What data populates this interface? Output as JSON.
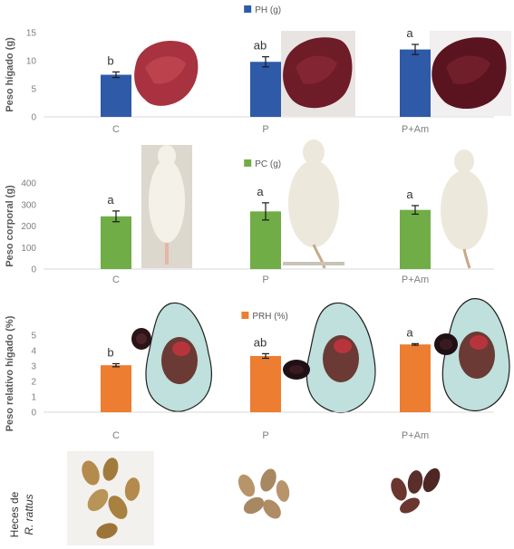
{
  "chart_data": [
    {
      "type": "bar",
      "legend": "PH (g)",
      "ylabel": "Peso hígado (g)",
      "categories": [
        "C",
        "P",
        "P+Am"
      ],
      "values": [
        7.5,
        9.8,
        12.0
      ],
      "errors": [
        0.5,
        0.9,
        0.9
      ],
      "letters": [
        "b",
        "ab",
        "a"
      ],
      "color": "#2e5aa8",
      "yticks": [
        0,
        5,
        10,
        15
      ],
      "ylim": [
        0,
        15
      ],
      "grid": false,
      "legend_position": "top"
    },
    {
      "type": "bar",
      "legend": "PC (g)",
      "ylabel": "Peso corporal (g)",
      "categories": [
        "C",
        "P",
        "P+Am"
      ],
      "values": [
        245,
        268,
        275
      ],
      "errors": [
        25,
        40,
        20
      ],
      "letters": [
        "a",
        "a",
        "a"
      ],
      "color": "#70ad47",
      "yticks": [
        0,
        100,
        200,
        300,
        400
      ],
      "ylim": [
        0,
        400
      ],
      "grid": false,
      "legend_position": "top"
    },
    {
      "type": "bar",
      "legend": "PRH (%)",
      "ylabel": "Peso relativo hígado (%)",
      "categories": [
        "C",
        "P",
        "P+Am"
      ],
      "values": [
        3.05,
        3.65,
        4.4
      ],
      "errors": [
        0.1,
        0.15,
        0.05
      ],
      "letters": [
        "b",
        "ab",
        "a"
      ],
      "color": "#ed7d31",
      "yticks": [
        0,
        1,
        2,
        3,
        4,
        5
      ],
      "ylim": [
        0,
        5
      ],
      "grid": false,
      "legend_position": "top"
    }
  ],
  "feces_label_line1": "Heces de",
  "feces_label_line2": "R. rattus",
  "colors": {
    "liver_photo": "#8a1f2e",
    "rat_white": "#ece8dc",
    "dissection_bg": "#bfe0dc",
    "feces_light": "#b48b4c",
    "feces_dark": "#5a2e2a"
  }
}
